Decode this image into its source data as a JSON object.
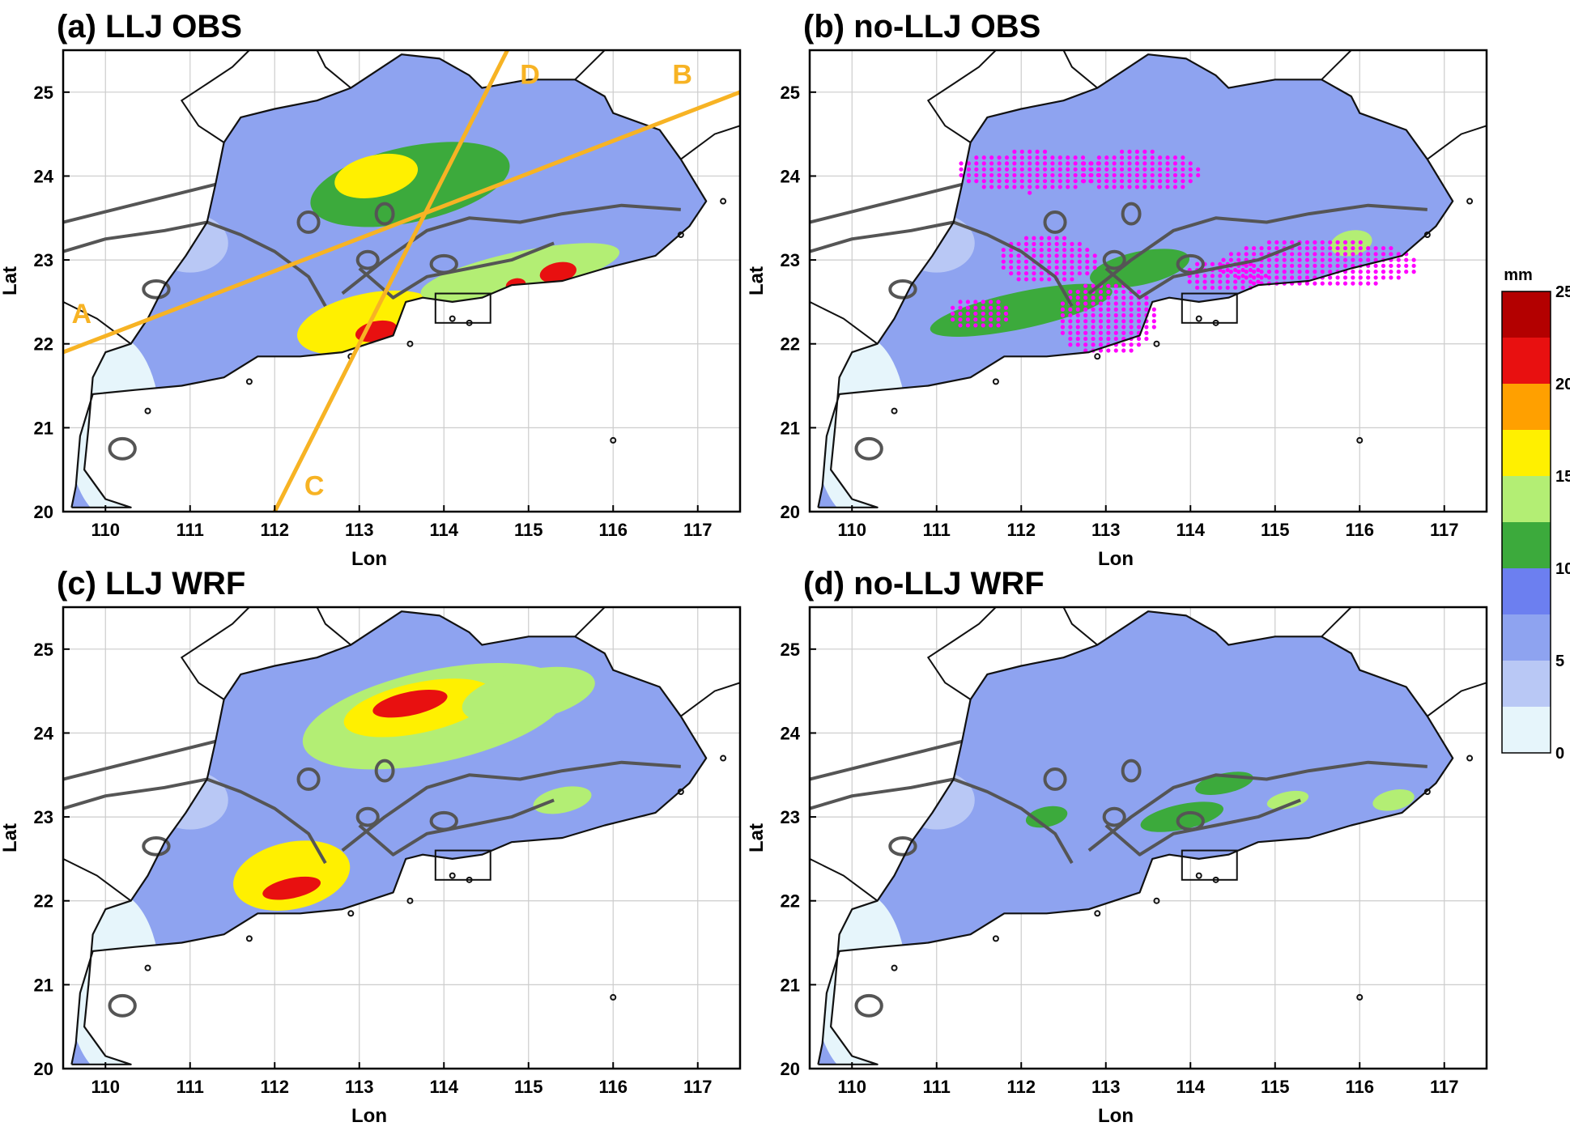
{
  "figure": {
    "panels": [
      {
        "id": "a",
        "title": "(a) LLJ OBS",
        "show_sections": true,
        "show_hatch": false,
        "blobs": [
          {
            "lon": 113.6,
            "lat": 23.9,
            "level": 12,
            "rx": 1.2,
            "ry": 0.45
          },
          {
            "lon": 113.1,
            "lat": 22.25,
            "level": 17,
            "rx": 0.85,
            "ry": 0.35
          },
          {
            "lon": 113.2,
            "lat": 22.15,
            "level": 21,
            "rx": 0.25,
            "ry": 0.12
          },
          {
            "lon": 114.9,
            "lat": 22.85,
            "level": 14,
            "rx": 1.2,
            "ry": 0.25
          },
          {
            "lon": 115.35,
            "lat": 22.85,
            "level": 21,
            "rx": 0.22,
            "ry": 0.12
          },
          {
            "lon": 114.85,
            "lat": 22.7,
            "level": 21,
            "rx": 0.12,
            "ry": 0.08
          },
          {
            "lon": 113.2,
            "lat": 24.0,
            "level": 15,
            "rx": 0.5,
            "ry": 0.25
          }
        ]
      },
      {
        "id": "b",
        "title": "(b) no-LLJ OBS",
        "show_sections": false,
        "show_hatch": true,
        "blobs": [
          {
            "lon": 112.0,
            "lat": 22.4,
            "level": 11,
            "rx": 1.1,
            "ry": 0.22
          },
          {
            "lon": 113.4,
            "lat": 22.9,
            "level": 11,
            "rx": 0.6,
            "ry": 0.2
          },
          {
            "lon": 115.9,
            "lat": 23.2,
            "level": 13,
            "rx": 0.25,
            "ry": 0.15
          }
        ]
      },
      {
        "id": "c",
        "title": "(c) LLJ WRF",
        "show_sections": false,
        "show_hatch": false,
        "blobs": [
          {
            "lon": 113.9,
            "lat": 24.2,
            "level": 13,
            "rx": 1.6,
            "ry": 0.55
          },
          {
            "lon": 113.7,
            "lat": 24.3,
            "level": 16,
            "rx": 0.9,
            "ry": 0.3
          },
          {
            "lon": 113.6,
            "lat": 24.35,
            "level": 22,
            "rx": 0.45,
            "ry": 0.14
          },
          {
            "lon": 112.2,
            "lat": 22.3,
            "level": 15,
            "rx": 0.7,
            "ry": 0.4
          },
          {
            "lon": 112.2,
            "lat": 22.15,
            "level": 22,
            "rx": 0.35,
            "ry": 0.12
          },
          {
            "lon": 115.0,
            "lat": 24.45,
            "level": 14,
            "rx": 0.8,
            "ry": 0.3
          },
          {
            "lon": 115.4,
            "lat": 23.2,
            "level": 13,
            "rx": 0.35,
            "ry": 0.15
          }
        ]
      },
      {
        "id": "d",
        "title": "(d) no-LLJ WRF",
        "show_sections": false,
        "show_hatch": false,
        "blobs": [
          {
            "lon": 113.9,
            "lat": 23.0,
            "level": 11,
            "rx": 0.5,
            "ry": 0.15
          },
          {
            "lon": 115.15,
            "lat": 23.2,
            "level": 14,
            "rx": 0.25,
            "ry": 0.1
          },
          {
            "lon": 116.4,
            "lat": 23.2,
            "level": 14,
            "rx": 0.25,
            "ry": 0.12
          },
          {
            "lon": 112.3,
            "lat": 23.0,
            "level": 11,
            "rx": 0.25,
            "ry": 0.12
          },
          {
            "lon": 114.4,
            "lat": 23.4,
            "level": 11,
            "rx": 0.35,
            "ry": 0.12
          }
        ]
      }
    ],
    "base_level": {
      "a": 6,
      "b": 7,
      "c": 7,
      "d": 5
    },
    "axes": {
      "x_label": "Lon",
      "y_label": "Lat",
      "lon_range": [
        109.5,
        117.5
      ],
      "lat_range": [
        20,
        25.5
      ],
      "lon_ticks": [
        "110",
        "111",
        "112",
        "113",
        "114",
        "115",
        "116",
        "117"
      ],
      "lat_ticks": [
        "20",
        "21",
        "22",
        "23",
        "24",
        "25"
      ]
    },
    "sections": [
      {
        "start_label": "A",
        "end_label": "B",
        "start": [
          109.5,
          21.9
        ],
        "end": [
          117.5,
          25.0
        ]
      },
      {
        "start_label": "C",
        "end_label": "D",
        "start": [
          112.0,
          20.0
        ],
        "end": [
          114.75,
          25.5
        ]
      }
    ],
    "colorbar": {
      "unit": "mm",
      "levels": [
        0,
        2.5,
        5,
        7.5,
        10,
        12.5,
        15,
        17.5,
        20,
        22.5,
        25
      ],
      "tick_labels": [
        "0",
        "5",
        "10",
        "15",
        "20",
        "25"
      ],
      "colors": [
        "#e6f5fb",
        "#b9c8f5",
        "#8ea3f0",
        "#6c7ff0",
        "#3caa3c",
        "#b3ee74",
        "#fff000",
        "#ffa000",
        "#e81010",
        "#b30000"
      ]
    },
    "colors": {
      "coast": "#111111",
      "terrain_contour": "#555555",
      "section_line": "#f7b324",
      "hatch": "#ff00ff",
      "grid": "#cccccc"
    },
    "region_outline": [
      [
        109.6,
        20.05
      ],
      [
        109.65,
        20.3
      ],
      [
        109.7,
        20.9
      ],
      [
        109.85,
        21.4
      ],
      [
        110.35,
        21.45
      ],
      [
        110.9,
        21.5
      ],
      [
        111.4,
        21.6
      ],
      [
        111.8,
        21.85
      ],
      [
        112.3,
        21.85
      ],
      [
        112.8,
        21.9
      ],
      [
        113.4,
        22.1
      ],
      [
        113.55,
        22.5
      ],
      [
        113.75,
        22.55
      ],
      [
        114.1,
        22.5
      ],
      [
        114.45,
        22.55
      ],
      [
        114.8,
        22.7
      ],
      [
        115.4,
        22.75
      ],
      [
        115.9,
        22.9
      ],
      [
        116.5,
        23.05
      ],
      [
        116.9,
        23.4
      ],
      [
        117.1,
        23.7
      ],
      [
        116.95,
        23.95
      ],
      [
        116.8,
        24.2
      ],
      [
        116.55,
        24.55
      ],
      [
        116.0,
        24.75
      ],
      [
        115.9,
        24.95
      ],
      [
        115.55,
        25.15
      ],
      [
        115.0,
        25.15
      ],
      [
        114.45,
        25.05
      ],
      [
        114.3,
        25.2
      ],
      [
        113.95,
        25.4
      ],
      [
        113.5,
        25.45
      ],
      [
        112.9,
        25.05
      ],
      [
        112.5,
        24.9
      ],
      [
        112.0,
        24.8
      ],
      [
        111.6,
        24.7
      ],
      [
        111.4,
        24.4
      ],
      [
        111.3,
        23.9
      ],
      [
        111.2,
        23.45
      ],
      [
        110.95,
        23.05
      ],
      [
        110.7,
        22.7
      ],
      [
        110.5,
        22.3
      ],
      [
        110.3,
        22.0
      ],
      [
        110.0,
        21.9
      ],
      [
        109.85,
        21.6
      ],
      [
        109.8,
        21.0
      ],
      [
        109.75,
        20.5
      ],
      [
        110.0,
        20.15
      ],
      [
        110.3,
        20.05
      ],
      [
        109.6,
        20.05
      ]
    ]
  }
}
